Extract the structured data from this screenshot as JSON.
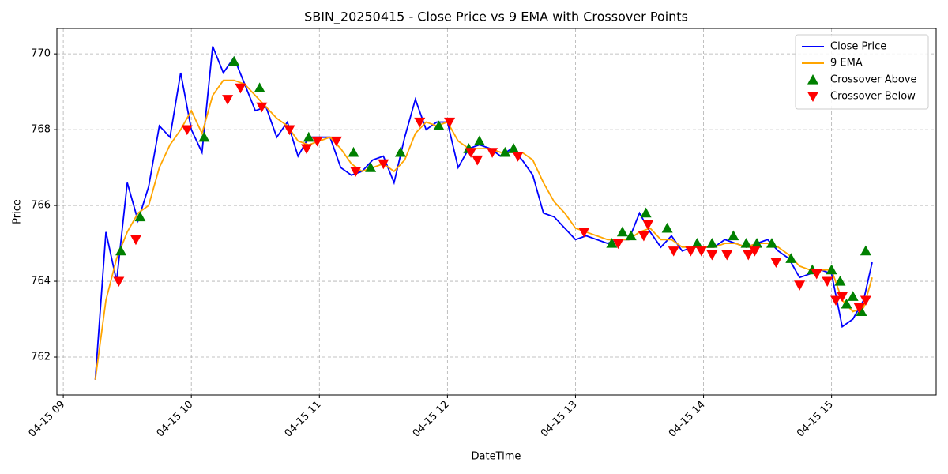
{
  "chart_data": {
    "type": "line",
    "title": "SBIN_20250415 - Close Price vs 9 EMA with Crossover Points",
    "x_label": "DateTime",
    "y_label": "Price",
    "x": [
      "04-15 09:15",
      "04-15 09:20",
      "04-15 09:25",
      "04-15 09:30",
      "04-15 09:35",
      "04-15 09:40",
      "04-15 09:45",
      "04-15 09:50",
      "04-15 09:55",
      "04-15 10:00",
      "04-15 10:05",
      "04-15 10:10",
      "04-15 10:15",
      "04-15 10:20",
      "04-15 10:25",
      "04-15 10:30",
      "04-15 10:35",
      "04-15 10:40",
      "04-15 10:45",
      "04-15 10:50",
      "04-15 10:55",
      "04-15 11:00",
      "04-15 11:05",
      "04-15 11:10",
      "04-15 11:15",
      "04-15 11:20",
      "04-15 11:25",
      "04-15 11:30",
      "04-15 11:35",
      "04-15 11:40",
      "04-15 11:45",
      "04-15 11:50",
      "04-15 11:55",
      "04-15 12:00",
      "04-15 12:05",
      "04-15 12:10",
      "04-15 12:15",
      "04-15 12:20",
      "04-15 12:25",
      "04-15 12:30",
      "04-15 12:35",
      "04-15 12:40",
      "04-15 12:45",
      "04-15 12:50",
      "04-15 12:55",
      "04-15 13:00",
      "04-15 13:05",
      "04-15 13:10",
      "04-15 13:15",
      "04-15 13:20",
      "04-15 13:25",
      "04-15 13:30",
      "04-15 13:35",
      "04-15 13:40",
      "04-15 13:45",
      "04-15 13:50",
      "04-15 13:55",
      "04-15 14:00",
      "04-15 14:05",
      "04-15 14:10",
      "04-15 14:15",
      "04-15 14:20",
      "04-15 14:25",
      "04-15 14:30",
      "04-15 14:35",
      "04-15 14:40",
      "04-15 14:45",
      "04-15 14:50",
      "04-15 14:55",
      "04-15 15:00",
      "04-15 15:05",
      "04-15 15:10",
      "04-15 15:15",
      "04-15 15:19"
    ],
    "series": [
      {
        "name": "Close Price",
        "color": "#0000ff",
        "values": [
          761.4,
          765.3,
          764.0,
          766.6,
          765.6,
          766.5,
          768.1,
          767.8,
          769.5,
          768.0,
          767.4,
          770.2,
          769.5,
          769.9,
          769.2,
          768.5,
          768.6,
          767.8,
          768.2,
          767.3,
          767.8,
          767.8,
          767.8,
          767.0,
          766.8,
          766.9,
          767.2,
          767.3,
          766.6,
          767.8,
          768.8,
          768.0,
          768.2,
          768.2,
          767.0,
          767.5,
          767.6,
          767.5,
          767.3,
          767.5,
          767.2,
          766.8,
          765.8,
          765.7,
          765.4,
          765.1,
          765.2,
          765.1,
          765.0,
          765.1,
          765.1,
          765.8,
          765.3,
          764.9,
          765.2,
          764.8,
          764.9,
          764.9,
          764.9,
          765.1,
          765.0,
          764.9,
          765.0,
          765.1,
          764.8,
          764.6,
          764.1,
          764.2,
          764.3,
          764.2,
          762.8,
          763.0,
          763.5,
          764.5
        ]
      },
      {
        "name": "9 EMA",
        "color": "#ffa500",
        "values": [
          761.4,
          763.5,
          764.6,
          765.3,
          765.8,
          766.0,
          767.0,
          767.6,
          768.0,
          768.5,
          767.9,
          768.9,
          769.3,
          769.3,
          769.2,
          768.9,
          768.6,
          768.3,
          768.1,
          767.7,
          767.6,
          767.7,
          767.8,
          767.5,
          767.1,
          766.9,
          767.0,
          767.1,
          766.9,
          767.2,
          767.9,
          768.2,
          768.1,
          768.2,
          767.7,
          767.5,
          767.5,
          767.5,
          767.4,
          767.4,
          767.4,
          767.2,
          766.6,
          766.1,
          765.8,
          765.4,
          765.3,
          765.2,
          765.1,
          765.1,
          765.1,
          765.3,
          765.4,
          765.1,
          765.1,
          764.9,
          764.9,
          764.9,
          764.9,
          765.0,
          765.0,
          764.9,
          765.0,
          765.0,
          764.9,
          764.7,
          764.4,
          764.3,
          764.3,
          764.3,
          763.5,
          763.2,
          763.3,
          764.1
        ]
      }
    ],
    "markers": [
      {
        "name": "Crossover Above",
        "color": "#008000",
        "shape": "triangle-up",
        "x": [
          "04-15 09:27",
          "04-15 09:36",
          "04-15 10:06",
          "04-15 10:20",
          "04-15 10:32",
          "04-15 10:55",
          "04-15 11:16",
          "04-15 11:24",
          "04-15 11:38",
          "04-15 11:56",
          "04-15 12:10",
          "04-15 12:15",
          "04-15 12:27",
          "04-15 12:31",
          "04-15 13:17",
          "04-15 13:22",
          "04-15 13:26",
          "04-15 13:33",
          "04-15 13:43",
          "04-15 13:57",
          "04-15 14:04",
          "04-15 14:14",
          "04-15 14:20",
          "04-15 14:25",
          "04-15 14:32",
          "04-15 14:41",
          "04-15 14:51",
          "04-15 15:00",
          "04-15 15:04",
          "04-15 15:07",
          "04-15 15:10",
          "04-15 15:14",
          "04-15 15:16"
        ],
        "y": [
          764.8,
          765.7,
          767.8,
          769.8,
          769.1,
          767.8,
          767.4,
          767.0,
          767.4,
          768.1,
          767.5,
          767.7,
          767.4,
          767.5,
          765.0,
          765.3,
          765.2,
          765.8,
          765.4,
          765.0,
          765.0,
          765.2,
          765.0,
          765.0,
          765.0,
          764.6,
          764.3,
          764.3,
          764.0,
          763.4,
          763.6,
          763.2,
          764.8
        ]
      },
      {
        "name": "Crossover Below",
        "color": "#ff0000",
        "shape": "triangle-down",
        "x": [
          "04-15 09:26",
          "04-15 09:34",
          "04-15 09:58",
          "04-15 10:17",
          "04-15 10:23",
          "04-15 10:33",
          "04-15 10:46",
          "04-15 10:54",
          "04-15 10:59",
          "04-15 11:08",
          "04-15 11:17",
          "04-15 11:30",
          "04-15 11:47",
          "04-15 12:01",
          "04-15 12:11",
          "04-15 12:14",
          "04-15 12:21",
          "04-15 12:33",
          "04-15 13:04",
          "04-15 13:20",
          "04-15 13:32",
          "04-15 13:34",
          "04-15 13:46",
          "04-15 13:54",
          "04-15 13:59",
          "04-15 14:04",
          "04-15 14:11",
          "04-15 14:21",
          "04-15 14:24",
          "04-15 14:34",
          "04-15 14:45",
          "04-15 14:53",
          "04-15 14:58",
          "04-15 15:02",
          "04-15 15:05",
          "04-15 15:13",
          "04-15 15:16"
        ],
        "y": [
          764.0,
          765.1,
          768.0,
          768.8,
          769.1,
          768.6,
          768.0,
          767.5,
          767.7,
          767.7,
          766.9,
          767.1,
          768.2,
          768.2,
          767.4,
          767.2,
          767.4,
          767.3,
          765.3,
          765.0,
          765.2,
          765.5,
          764.8,
          764.8,
          764.8,
          764.7,
          764.7,
          764.7,
          764.8,
          764.5,
          763.9,
          764.2,
          764.0,
          763.5,
          763.6,
          763.3,
          763.5
        ]
      }
    ],
    "xlim": [
      "04-15 08:57",
      "04-15 15:49"
    ],
    "xticks": [
      {
        "value": "04-15 09:00",
        "label": "04-15 09"
      },
      {
        "value": "04-15 10:00",
        "label": "04-15 10"
      },
      {
        "value": "04-15 11:00",
        "label": "04-15 11"
      },
      {
        "value": "04-15 12:00",
        "label": "04-15 12"
      },
      {
        "value": "04-15 13:00",
        "label": "04-15 13"
      },
      {
        "value": "04-15 14:00",
        "label": "04-15 14"
      },
      {
        "value": "04-15 15:00",
        "label": "04-15 15"
      }
    ],
    "ylim": [
      761.0,
      770.67
    ],
    "yticks": [
      762,
      764,
      766,
      768,
      770
    ],
    "grid": true,
    "legend": "upper right"
  }
}
